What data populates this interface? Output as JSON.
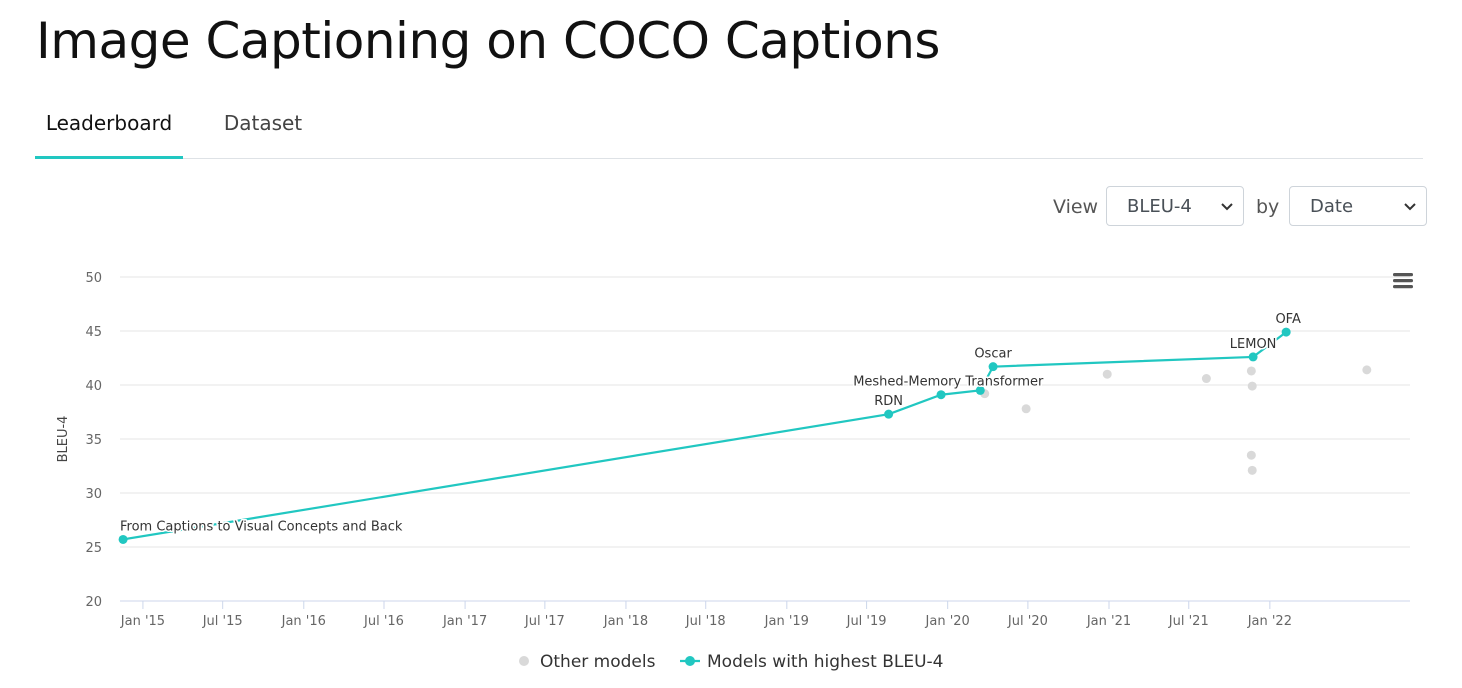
{
  "page": {
    "title": "Image Captioning on COCO Captions"
  },
  "tabs": [
    {
      "label": "Leaderboard",
      "active": true
    },
    {
      "label": "Dataset",
      "active": false
    }
  ],
  "controls": {
    "view_label": "View",
    "metric_value": "BLEU-4",
    "by_label": "by",
    "sort_value": "Date"
  },
  "menu_icon": "hamburger-menu-icon",
  "colors": {
    "accent": "#21c7c1",
    "other": "#d9d9d9",
    "grid": "#e6e6e6"
  },
  "chart_data": {
    "type": "scatter",
    "ylabel": "BLEU-4",
    "ylim": [
      20,
      50
    ],
    "yticks": [
      20,
      25,
      30,
      35,
      40,
      45,
      50
    ],
    "xticks": [
      "Jan '15",
      "Jul '15",
      "Jan '16",
      "Jul '16",
      "Jan '17",
      "Jul '17",
      "Jan '18",
      "Jul '18",
      "Jan '19",
      "Jul '19",
      "Jan '20",
      "Jul '20",
      "Jan '21",
      "Jul '21",
      "Jan '22"
    ],
    "xtick_dates": [
      "2015-01-01",
      "2015-07-01",
      "2016-01-01",
      "2016-07-01",
      "2017-01-01",
      "2017-07-01",
      "2018-01-01",
      "2018-07-01",
      "2019-01-01",
      "2019-07-01",
      "2020-01-01",
      "2020-07-01",
      "2021-01-01",
      "2021-07-01",
      "2022-01-01"
    ],
    "xlim": [
      "2014-11-10",
      "2022-11-15"
    ],
    "grid": true,
    "legend_position": "bottom",
    "series": [
      {
        "name": "Models with highest BLEU-4",
        "color": "#21c7c1",
        "points": [
          {
            "x": "2014-11-17",
            "y": 25.7,
            "label": "From Captions to Visual Concepts and Back"
          },
          {
            "x": "2019-08-20",
            "y": 37.3,
            "label": "RDN"
          },
          {
            "x": "2019-12-17",
            "y": 39.1,
            "label": ""
          },
          {
            "x": "2020-03-15",
            "y": 39.5,
            "label": "Meshed-Memory Transformer"
          },
          {
            "x": "2020-04-13",
            "y": 41.7,
            "label": "Oscar"
          },
          {
            "x": "2021-11-24",
            "y": 42.6,
            "label": "LEMON"
          },
          {
            "x": "2022-02-07",
            "y": 44.9,
            "label": "OFA"
          }
        ]
      },
      {
        "name": "Other models",
        "color": "#d9d9d9",
        "points": [
          {
            "x": "2020-03-25",
            "y": 39.2
          },
          {
            "x": "2020-06-27",
            "y": 37.8
          },
          {
            "x": "2020-12-28",
            "y": 41.0
          },
          {
            "x": "2021-08-10",
            "y": 40.6
          },
          {
            "x": "2021-11-20",
            "y": 41.3
          },
          {
            "x": "2021-11-22",
            "y": 39.9
          },
          {
            "x": "2021-11-20",
            "y": 33.5
          },
          {
            "x": "2021-11-22",
            "y": 32.1
          },
          {
            "x": "2022-08-09",
            "y": 41.4
          }
        ]
      }
    ]
  }
}
